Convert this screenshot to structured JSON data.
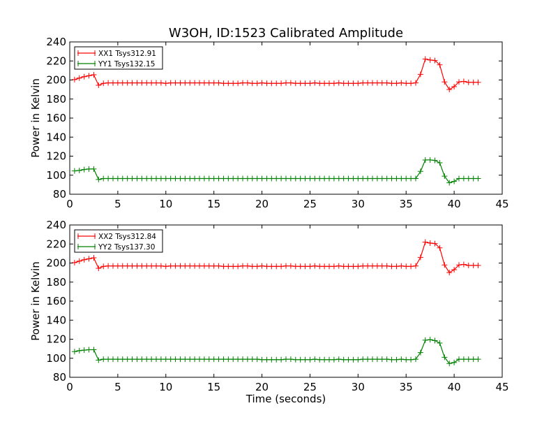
{
  "chart_data": {
    "type": "line",
    "title": "W3OH, ID:1523 Calibrated Amplitude",
    "xlabel": "Time (seconds)",
    "xlim": [
      0,
      45
    ],
    "xticks": [
      "0",
      "5",
      "10",
      "15",
      "20",
      "25",
      "30",
      "35",
      "40",
      "45"
    ],
    "colors": {
      "XX": "#ff0000",
      "YY": "#008000"
    },
    "panels": [
      {
        "ylabel": "Power in Kelvin",
        "ylim": [
          80,
          240
        ],
        "yticks": [
          "80",
          "100",
          "120",
          "140",
          "160",
          "180",
          "200",
          "220",
          "240"
        ],
        "legend_position": "upper-left",
        "series": [
          {
            "name": "XX1 Tsys312.91",
            "color": "#ff0000",
            "x": [
              0.5,
              1.0,
              1.5,
              2.0,
              2.5,
              3.0,
              3.5,
              4.0,
              4.5,
              5.0,
              5.5,
              6.0,
              6.5,
              7.0,
              7.5,
              8.0,
              8.5,
              9.0,
              9.5,
              10.0,
              10.5,
              11.0,
              11.5,
              12.0,
              12.5,
              13.0,
              13.5,
              14.0,
              14.5,
              15.0,
              15.5,
              16.0,
              16.5,
              17.0,
              17.5,
              18.0,
              18.5,
              19.0,
              19.5,
              20.0,
              20.5,
              21.0,
              21.5,
              22.0,
              22.5,
              23.0,
              23.5,
              24.0,
              24.5,
              25.0,
              25.5,
              26.0,
              26.5,
              27.0,
              27.5,
              28.0,
              28.5,
              29.0,
              29.5,
              30.0,
              30.5,
              31.0,
              31.5,
              32.0,
              32.5,
              33.0,
              33.5,
              34.0,
              34.5,
              35.0,
              35.5,
              36.0,
              36.5,
              37.0,
              37.5,
              38.0,
              38.5,
              39.0,
              39.5,
              40.0,
              40.5,
              41.0,
              41.5,
              42.0,
              42.5
            ],
            "y": [
              200.5,
              202,
              203.5,
              204.5,
              205.5,
              194.5,
              196.5,
              197,
              197,
              197,
              197,
              197,
              197,
              197,
              197,
              197,
              197,
              197,
              197,
              196.5,
              197,
              197,
              197,
              197,
              197,
              197,
              197,
              197,
              197,
              197,
              197,
              196.5,
              196.5,
              196.5,
              196.5,
              197,
              197,
              196.5,
              196.5,
              197,
              196.5,
              196.5,
              196.5,
              196.5,
              197,
              197,
              196.5,
              196.5,
              196.5,
              196.5,
              197,
              196.5,
              196.5,
              196.5,
              196.5,
              197,
              196.5,
              196.5,
              196.5,
              196.5,
              197,
              197,
              197,
              197,
              197,
              197,
              196.5,
              196.5,
              197,
              196.5,
              196.5,
              197,
              206,
              222,
              221,
              220.5,
              216,
              198,
              190,
              193,
              198,
              198.5,
              197.5,
              197.5,
              197.5
            ]
          },
          {
            "name": "YY1 Tsys132.15",
            "color": "#008000",
            "x": [
              0.5,
              1.0,
              1.5,
              2.0,
              2.5,
              3.0,
              3.5,
              4.0,
              4.5,
              5.0,
              5.5,
              6.0,
              6.5,
              7.0,
              7.5,
              8.0,
              8.5,
              9.0,
              9.5,
              10.0,
              10.5,
              11.0,
              11.5,
              12.0,
              12.5,
              13.0,
              13.5,
              14.0,
              14.5,
              15.0,
              15.5,
              16.0,
              16.5,
              17.0,
              17.5,
              18.0,
              18.5,
              19.0,
              19.5,
              20.0,
              20.5,
              21.0,
              21.5,
              22.0,
              22.5,
              23.0,
              23.5,
              24.0,
              24.5,
              25.0,
              25.5,
              26.0,
              26.5,
              27.0,
              27.5,
              28.0,
              28.5,
              29.0,
              29.5,
              30.0,
              30.5,
              31.0,
              31.5,
              32.0,
              32.5,
              33.0,
              33.5,
              34.0,
              34.5,
              35.0,
              35.5,
              36.0,
              36.5,
              37.0,
              37.5,
              38.0,
              38.5,
              39.0,
              39.5,
              40.0,
              40.5,
              41.0,
              41.5,
              42.0,
              42.5
            ],
            "y": [
              104.5,
              105,
              106,
              106.5,
              106.5,
              95.5,
              96.5,
              96.5,
              96.5,
              96.5,
              96.5,
              96.5,
              96.5,
              96.5,
              96.5,
              96.5,
              96.5,
              96.5,
              96.5,
              96.5,
              96.5,
              96.5,
              96.5,
              96.5,
              96.5,
              96.5,
              96.5,
              96.5,
              96.5,
              96.5,
              96.5,
              96.5,
              96.5,
              96.5,
              96.5,
              96.5,
              96.5,
              96.5,
              96.5,
              96.5,
              96.5,
              96.5,
              96.5,
              96.5,
              96.5,
              96.5,
              96.5,
              96.5,
              96.5,
              96.5,
              96.5,
              96.5,
              96.5,
              96.5,
              96.5,
              96.5,
              96.5,
              96.5,
              96.5,
              96.5,
              96.5,
              96.5,
              96.5,
              96.5,
              96.5,
              96.5,
              96.5,
              96.5,
              96.5,
              96.5,
              96.5,
              96.5,
              104,
              116,
              116,
              115.5,
              113,
              99,
              92,
              93.5,
              96.5,
              96.5,
              96.5,
              96.5,
              96.5
            ]
          }
        ]
      },
      {
        "ylabel": "Power in Kelvin",
        "ylim": [
          80,
          240
        ],
        "yticks": [
          "80",
          "100",
          "120",
          "140",
          "160",
          "180",
          "200",
          "220",
          "240"
        ],
        "legend_position": "upper-left",
        "series": [
          {
            "name": "XX2 Tsys312.84",
            "color": "#ff0000",
            "x": [
              0.5,
              1.0,
              1.5,
              2.0,
              2.5,
              3.0,
              3.5,
              4.0,
              4.5,
              5.0,
              5.5,
              6.0,
              6.5,
              7.0,
              7.5,
              8.0,
              8.5,
              9.0,
              9.5,
              10.0,
              10.5,
              11.0,
              11.5,
              12.0,
              12.5,
              13.0,
              13.5,
              14.0,
              14.5,
              15.0,
              15.5,
              16.0,
              16.5,
              17.0,
              17.5,
              18.0,
              18.5,
              19.0,
              19.5,
              20.0,
              20.5,
              21.0,
              21.5,
              22.0,
              22.5,
              23.0,
              23.5,
              24.0,
              24.5,
              25.0,
              25.5,
              26.0,
              26.5,
              27.0,
              27.5,
              28.0,
              28.5,
              29.0,
              29.5,
              30.0,
              30.5,
              31.0,
              31.5,
              32.0,
              32.5,
              33.0,
              33.5,
              34.0,
              34.5,
              35.0,
              35.5,
              36.0,
              36.5,
              37.0,
              37.5,
              38.0,
              38.5,
              39.0,
              39.5,
              40.0,
              40.5,
              41.0,
              41.5,
              42.0,
              42.5
            ],
            "y": [
              200.5,
              202,
              203.5,
              204.5,
              205.5,
              194.5,
              196.5,
              197,
              197,
              197,
              197,
              197,
              197,
              197,
              197,
              197,
              197,
              197,
              197,
              196.5,
              197,
              197,
              197,
              197,
              197,
              197,
              197,
              197,
              197,
              197,
              197,
              196.5,
              196.5,
              196.5,
              196.5,
              197,
              197,
              196.5,
              196.5,
              197,
              196.5,
              196.5,
              196.5,
              196.5,
              197,
              197,
              196.5,
              196.5,
              196.5,
              196.5,
              197,
              196.5,
              196.5,
              196.5,
              196.5,
              197,
              196.5,
              196.5,
              196.5,
              196.5,
              197,
              197,
              197,
              197,
              197,
              197,
              196.5,
              196.5,
              197,
              196.5,
              196.5,
              197,
              206,
              222,
              221,
              220.5,
              216,
              198,
              190,
              193,
              198,
              198.5,
              197.5,
              197.5,
              197.5
            ]
          },
          {
            "name": "YY2 Tsys137.30",
            "color": "#008000",
            "x": [
              0.5,
              1.0,
              1.5,
              2.0,
              2.5,
              3.0,
              3.5,
              4.0,
              4.5,
              5.0,
              5.5,
              6.0,
              6.5,
              7.0,
              7.5,
              8.0,
              8.5,
              9.0,
              9.5,
              10.0,
              10.5,
              11.0,
              11.5,
              12.0,
              12.5,
              13.0,
              13.5,
              14.0,
              14.5,
              15.0,
              15.5,
              16.0,
              16.5,
              17.0,
              17.5,
              18.0,
              18.5,
              19.0,
              19.5,
              20.0,
              20.5,
              21.0,
              21.5,
              22.0,
              22.5,
              23.0,
              23.5,
              24.0,
              24.5,
              25.0,
              25.5,
              26.0,
              26.5,
              27.0,
              27.5,
              28.0,
              28.5,
              29.0,
              29.5,
              30.0,
              30.5,
              31.0,
              31.5,
              32.0,
              32.5,
              33.0,
              33.5,
              34.0,
              34.5,
              35.0,
              35.5,
              36.0,
              36.5,
              37.0,
              37.5,
              38.0,
              38.5,
              39.0,
              39.5,
              40.0,
              40.5,
              41.0,
              41.5,
              42.0,
              42.5
            ],
            "y": [
              107,
              108,
              108.5,
              109,
              109,
              98,
              99,
              99,
              99,
              99,
              99,
              99,
              99,
              99,
              99,
              99,
              99,
              99,
              99,
              99,
              99,
              99,
              99,
              99,
              99,
              99,
              99,
              99,
              99,
              99,
              99,
              99,
              99,
              99,
              99,
              99,
              99,
              99,
              99,
              98.5,
              98.5,
              98.5,
              98.5,
              98.5,
              99,
              99,
              98.5,
              98.5,
              98.5,
              98.5,
              99,
              98.5,
              98.5,
              98.5,
              98.5,
              99,
              98.5,
              98.5,
              98.5,
              98.5,
              99,
              99,
              99,
              99,
              99,
              99,
              98.5,
              98.5,
              99,
              98.5,
              98.5,
              99,
              106,
              119,
              119.5,
              118.5,
              116,
              101,
              94.5,
              95.5,
              99,
              99,
              99,
              99,
              99
            ]
          }
        ]
      }
    ]
  }
}
